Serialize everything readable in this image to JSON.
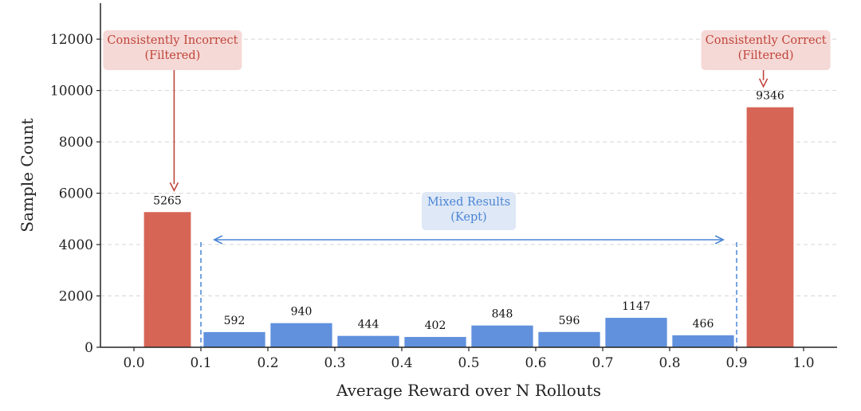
{
  "chart_data": {
    "type": "bar",
    "title": "",
    "xlabel": "Average Reward over N Rollouts",
    "ylabel": "Sample Count",
    "xlim": [
      -0.05,
      1.05
    ],
    "ylim": [
      0,
      13400
    ],
    "xticks": [
      "0.0",
      "0.1",
      "0.2",
      "0.3",
      "0.4",
      "0.5",
      "0.6",
      "0.7",
      "0.8",
      "0.9",
      "1.0"
    ],
    "yticks": [
      "0",
      "2000",
      "4000",
      "6000",
      "8000",
      "10000",
      "12000"
    ],
    "grid": "horizontal dashed",
    "bins": [
      {
        "x0": 0.0,
        "x1": 0.1,
        "value": 5265,
        "label": "5265",
        "group": "filtered"
      },
      {
        "x0": 0.1,
        "x1": 0.2,
        "value": 592,
        "label": "592",
        "group": "kept"
      },
      {
        "x0": 0.2,
        "x1": 0.3,
        "value": 940,
        "label": "940",
        "group": "kept"
      },
      {
        "x0": 0.3,
        "x1": 0.4,
        "value": 444,
        "label": "444",
        "group": "kept"
      },
      {
        "x0": 0.4,
        "x1": 0.5,
        "value": 402,
        "label": "402",
        "group": "kept"
      },
      {
        "x0": 0.5,
        "x1": 0.6,
        "value": 848,
        "label": "848",
        "group": "kept"
      },
      {
        "x0": 0.6,
        "x1": 0.7,
        "value": 596,
        "label": "596",
        "group": "kept"
      },
      {
        "x0": 0.7,
        "x1": 0.8,
        "value": 1147,
        "label": "1147",
        "group": "kept"
      },
      {
        "x0": 0.8,
        "x1": 0.9,
        "value": 466,
        "label": "466",
        "group": "kept"
      },
      {
        "x0": 0.9,
        "x1": 1.0,
        "value": 9346,
        "label": "9346",
        "group": "filtered"
      }
    ],
    "colors": {
      "filtered": "#d45f4f",
      "kept": "#5b8ddc"
    },
    "annotations": [
      {
        "id": "incorrect",
        "lines": [
          "Consistently Incorrect",
          "(Filtered)"
        ],
        "color": "#c0443a",
        "box_color": "#f5d9d6"
      },
      {
        "id": "correct",
        "lines": [
          "Consistently Correct",
          "(Filtered)"
        ],
        "color": "#c0443a",
        "box_color": "#f5d9d6"
      },
      {
        "id": "mixed",
        "lines": [
          "Mixed Results",
          "(Kept)"
        ],
        "color": "#4a86d6",
        "box_color": "#dfe8f6"
      }
    ]
  }
}
